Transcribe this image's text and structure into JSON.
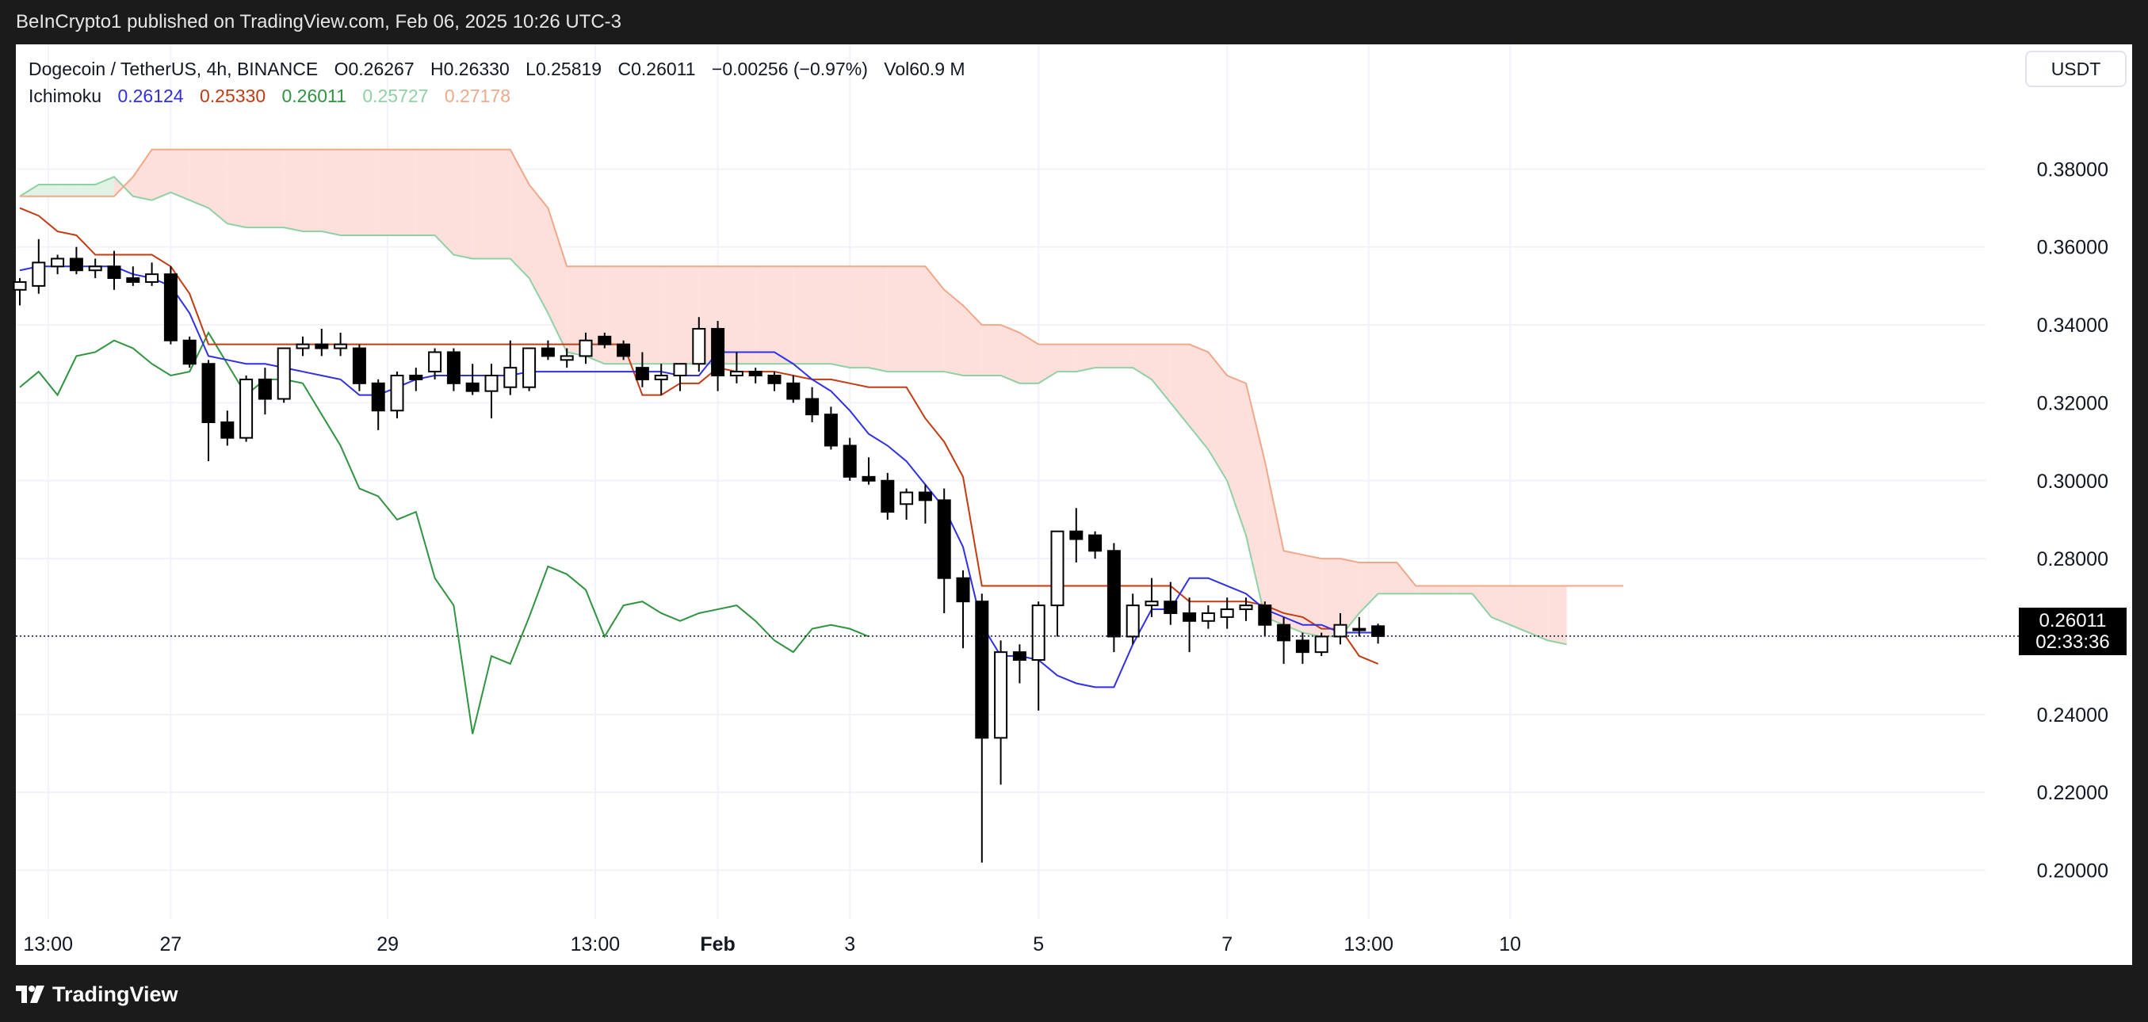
{
  "header": {
    "published_text": "BeInCrypto1 published on TradingView.com, Feb 06, 2025 10:26 UTC-3"
  },
  "legend": {
    "symbol": "Dogecoin / TetherUS, 4h, BINANCE",
    "open": "O0.26267",
    "high": "H0.26330",
    "low": "L0.25819",
    "close": "C0.26011",
    "change": "−0.00256 (−0.97%)",
    "volume": "Vol60.9 M",
    "indicator_name": "Ichimoku",
    "indicator_values": [
      "0.26124",
      "0.25330",
      "0.26011",
      "0.25727",
      "0.27178"
    ]
  },
  "currency_button": "USDT",
  "price_tag": {
    "price": "0.26011",
    "countdown": "02:33:36"
  },
  "footer": {
    "brand": "TradingView"
  },
  "colors": {
    "conversion": "#2f2fe8",
    "base": "#c23b12",
    "lagging": "#2e9440",
    "span_a": "#8fd1a3",
    "span_b": "#f0a889",
    "cloud_bear": "#fde0dc",
    "cloud_bull": "#dff2e3",
    "candle": "#000000"
  },
  "chart_data": {
    "type": "candlestick",
    "title": "Dogecoin / TetherUS, 4h, BINANCE",
    "symbol": "DOGEUSDT",
    "interval": "4h",
    "x_axis_labels": [
      "13:00",
      "27",
      "29",
      "13:00",
      "Feb",
      "3",
      "5",
      "7",
      "13:00",
      "10"
    ],
    "x_axis_label_bar_index": [
      1.5,
      8,
      19.5,
      30.5,
      37,
      44,
      54,
      64,
      71.5,
      79
    ],
    "y_ticks": [
      0.38,
      0.36,
      0.34,
      0.32,
      0.3,
      0.28,
      0.26,
      0.24,
      0.22,
      0.2
    ],
    "y_tick_labels": [
      "0.38000",
      "0.36000",
      "0.34000",
      "0.32000",
      "0.30000",
      "0.28000",
      "0.24000",
      "0.22000",
      "0.20000"
    ],
    "y_range": [
      0.1875,
      0.412
    ],
    "last_price": 0.26011,
    "candles": [
      {
        "o": 0.349,
        "h": 0.352,
        "l": 0.345,
        "c": 0.351
      },
      {
        "o": 0.35,
        "h": 0.362,
        "l": 0.348,
        "c": 0.356
      },
      {
        "o": 0.355,
        "h": 0.358,
        "l": 0.353,
        "c": 0.357
      },
      {
        "o": 0.357,
        "h": 0.36,
        "l": 0.353,
        "c": 0.354
      },
      {
        "o": 0.354,
        "h": 0.357,
        "l": 0.352,
        "c": 0.355
      },
      {
        "o": 0.355,
        "h": 0.359,
        "l": 0.349,
        "c": 0.352
      },
      {
        "o": 0.352,
        "h": 0.355,
        "l": 0.35,
        "c": 0.351
      },
      {
        "o": 0.351,
        "h": 0.356,
        "l": 0.35,
        "c": 0.353
      },
      {
        "o": 0.353,
        "h": 0.355,
        "l": 0.335,
        "c": 0.336
      },
      {
        "o": 0.336,
        "h": 0.337,
        "l": 0.329,
        "c": 0.33
      },
      {
        "o": 0.33,
        "h": 0.331,
        "l": 0.305,
        "c": 0.315
      },
      {
        "o": 0.315,
        "h": 0.318,
        "l": 0.309,
        "c": 0.311
      },
      {
        "o": 0.311,
        "h": 0.327,
        "l": 0.31,
        "c": 0.326
      },
      {
        "o": 0.326,
        "h": 0.329,
        "l": 0.317,
        "c": 0.321
      },
      {
        "o": 0.321,
        "h": 0.334,
        "l": 0.32,
        "c": 0.334
      },
      {
        "o": 0.334,
        "h": 0.337,
        "l": 0.332,
        "c": 0.335
      },
      {
        "o": 0.335,
        "h": 0.339,
        "l": 0.332,
        "c": 0.334
      },
      {
        "o": 0.334,
        "h": 0.338,
        "l": 0.332,
        "c": 0.335
      },
      {
        "o": 0.334,
        "h": 0.335,
        "l": 0.323,
        "c": 0.325
      },
      {
        "o": 0.325,
        "h": 0.326,
        "l": 0.313,
        "c": 0.318
      },
      {
        "o": 0.318,
        "h": 0.328,
        "l": 0.316,
        "c": 0.327
      },
      {
        "o": 0.327,
        "h": 0.329,
        "l": 0.323,
        "c": 0.326
      },
      {
        "o": 0.328,
        "h": 0.334,
        "l": 0.326,
        "c": 0.333
      },
      {
        "o": 0.333,
        "h": 0.334,
        "l": 0.323,
        "c": 0.325
      },
      {
        "o": 0.325,
        "h": 0.33,
        "l": 0.322,
        "c": 0.323
      },
      {
        "o": 0.323,
        "h": 0.33,
        "l": 0.316,
        "c": 0.327
      },
      {
        "o": 0.324,
        "h": 0.336,
        "l": 0.322,
        "c": 0.329
      },
      {
        "o": 0.324,
        "h": 0.334,
        "l": 0.323,
        "c": 0.334
      },
      {
        "o": 0.334,
        "h": 0.336,
        "l": 0.331,
        "c": 0.332
      },
      {
        "o": 0.331,
        "h": 0.334,
        "l": 0.329,
        "c": 0.332
      },
      {
        "o": 0.332,
        "h": 0.338,
        "l": 0.33,
        "c": 0.336
      },
      {
        "o": 0.337,
        "h": 0.338,
        "l": 0.334,
        "c": 0.335
      },
      {
        "o": 0.335,
        "h": 0.336,
        "l": 0.331,
        "c": 0.332
      },
      {
        "o": 0.329,
        "h": 0.333,
        "l": 0.324,
        "c": 0.326
      },
      {
        "o": 0.326,
        "h": 0.33,
        "l": 0.322,
        "c": 0.327
      },
      {
        "o": 0.327,
        "h": 0.33,
        "l": 0.323,
        "c": 0.33
      },
      {
        "o": 0.33,
        "h": 0.342,
        "l": 0.328,
        "c": 0.339
      },
      {
        "o": 0.339,
        "h": 0.341,
        "l": 0.323,
        "c": 0.327
      },
      {
        "o": 0.327,
        "h": 0.333,
        "l": 0.325,
        "c": 0.328
      },
      {
        "o": 0.328,
        "h": 0.329,
        "l": 0.325,
        "c": 0.327
      },
      {
        "o": 0.327,
        "h": 0.328,
        "l": 0.323,
        "c": 0.325
      },
      {
        "o": 0.325,
        "h": 0.327,
        "l": 0.32,
        "c": 0.321
      },
      {
        "o": 0.321,
        "h": 0.324,
        "l": 0.315,
        "c": 0.317
      },
      {
        "o": 0.317,
        "h": 0.319,
        "l": 0.308,
        "c": 0.309
      },
      {
        "o": 0.309,
        "h": 0.311,
        "l": 0.3,
        "c": 0.301
      },
      {
        "o": 0.301,
        "h": 0.306,
        "l": 0.299,
        "c": 0.3
      },
      {
        "o": 0.3,
        "h": 0.302,
        "l": 0.29,
        "c": 0.292
      },
      {
        "o": 0.294,
        "h": 0.298,
        "l": 0.29,
        "c": 0.297
      },
      {
        "o": 0.297,
        "h": 0.299,
        "l": 0.289,
        "c": 0.295
      },
      {
        "o": 0.295,
        "h": 0.298,
        "l": 0.266,
        "c": 0.275
      },
      {
        "o": 0.275,
        "h": 0.277,
        "l": 0.257,
        "c": 0.269
      },
      {
        "o": 0.269,
        "h": 0.271,
        "l": 0.202,
        "c": 0.234
      },
      {
        "o": 0.234,
        "h": 0.259,
        "l": 0.222,
        "c": 0.256
      },
      {
        "o": 0.256,
        "h": 0.258,
        "l": 0.248,
        "c": 0.254
      },
      {
        "o": 0.254,
        "h": 0.269,
        "l": 0.241,
        "c": 0.268
      },
      {
        "o": 0.268,
        "h": 0.287,
        "l": 0.26,
        "c": 0.287
      },
      {
        "o": 0.287,
        "h": 0.293,
        "l": 0.279,
        "c": 0.285
      },
      {
        "o": 0.286,
        "h": 0.287,
        "l": 0.28,
        "c": 0.282
      },
      {
        "o": 0.282,
        "h": 0.284,
        "l": 0.256,
        "c": 0.26
      },
      {
        "o": 0.26,
        "h": 0.271,
        "l": 0.258,
        "c": 0.268
      },
      {
        "o": 0.268,
        "h": 0.275,
        "l": 0.265,
        "c": 0.269
      },
      {
        "o": 0.269,
        "h": 0.274,
        "l": 0.263,
        "c": 0.266
      },
      {
        "o": 0.266,
        "h": 0.27,
        "l": 0.256,
        "c": 0.264
      },
      {
        "o": 0.264,
        "h": 0.268,
        "l": 0.262,
        "c": 0.266
      },
      {
        "o": 0.265,
        "h": 0.27,
        "l": 0.262,
        "c": 0.267
      },
      {
        "o": 0.267,
        "h": 0.27,
        "l": 0.264,
        "c": 0.268
      },
      {
        "o": 0.268,
        "h": 0.269,
        "l": 0.26,
        "c": 0.263
      },
      {
        "o": 0.263,
        "h": 0.265,
        "l": 0.253,
        "c": 0.259
      },
      {
        "o": 0.259,
        "h": 0.261,
        "l": 0.253,
        "c": 0.256
      },
      {
        "o": 0.256,
        "h": 0.261,
        "l": 0.255,
        "c": 0.26
      },
      {
        "o": 0.26,
        "h": 0.266,
        "l": 0.258,
        "c": 0.263
      },
      {
        "o": 0.262,
        "h": 0.265,
        "l": 0.26,
        "c": 0.262
      },
      {
        "o": 0.26267,
        "h": 0.2633,
        "l": 0.25819,
        "c": 0.26011
      }
    ],
    "series": [
      {
        "name": "Conversion Line",
        "start_index": 0,
        "values": [
          0.354,
          0.355,
          0.355,
          0.355,
          0.355,
          0.355,
          0.353,
          0.352,
          0.35,
          0.343,
          0.332,
          0.331,
          0.33,
          0.33,
          0.329,
          0.328,
          0.327,
          0.326,
          0.322,
          0.322,
          0.324,
          0.326,
          0.327,
          0.327,
          0.327,
          0.327,
          0.327,
          0.328,
          0.328,
          0.328,
          0.328,
          0.328,
          0.328,
          0.328,
          0.328,
          0.327,
          0.327,
          0.333,
          0.333,
          0.333,
          0.333,
          0.33,
          0.326,
          0.323,
          0.318,
          0.312,
          0.309,
          0.305,
          0.299,
          0.293,
          0.283,
          0.263,
          0.255,
          0.255,
          0.254,
          0.25,
          0.248,
          0.247,
          0.247,
          0.258,
          0.267,
          0.267,
          0.275,
          0.275,
          0.273,
          0.271,
          0.267,
          0.265,
          0.263,
          0.263,
          0.261,
          0.261,
          0.261
        ]
      },
      {
        "name": "Base Line",
        "start_index": 0,
        "values": [
          0.37,
          0.368,
          0.364,
          0.363,
          0.358,
          0.358,
          0.358,
          0.358,
          0.355,
          0.348,
          0.335,
          0.335,
          0.335,
          0.335,
          0.335,
          0.335,
          0.335,
          0.335,
          0.335,
          0.335,
          0.335,
          0.335,
          0.335,
          0.335,
          0.335,
          0.335,
          0.335,
          0.335,
          0.335,
          0.335,
          0.335,
          0.335,
          0.335,
          0.322,
          0.322,
          0.325,
          0.325,
          0.329,
          0.328,
          0.328,
          0.328,
          0.327,
          0.326,
          0.326,
          0.325,
          0.324,
          0.324,
          0.324,
          0.316,
          0.31,
          0.301,
          0.273,
          0.273,
          0.273,
          0.273,
          0.273,
          0.273,
          0.273,
          0.273,
          0.273,
          0.273,
          0.273,
          0.269,
          0.269,
          0.269,
          0.269,
          0.268,
          0.266,
          0.265,
          0.262,
          0.262,
          0.255,
          0.253
        ]
      },
      {
        "name": "Lagging Span",
        "start_index": 0,
        "values": [
          0.324,
          0.328,
          0.322,
          0.332,
          0.333,
          0.336,
          0.334,
          0.33,
          0.327,
          0.328,
          0.338,
          0.33,
          0.322,
          0.326,
          0.326,
          0.325,
          0.317,
          0.309,
          0.298,
          0.296,
          0.29,
          0.292,
          0.275,
          0.268,
          0.235,
          0.255,
          0.253,
          0.265,
          0.278,
          0.276,
          0.272,
          0.26,
          0.268,
          0.269,
          0.266,
          0.264,
          0.266,
          0.267,
          0.268,
          0.264,
          0.259,
          0.256,
          0.262,
          0.263,
          0.262,
          0.26
        ]
      },
      {
        "name": "Leading Span A",
        "start_index": 0,
        "values": [
          0.373,
          0.376,
          0.376,
          0.376,
          0.376,
          0.378,
          0.373,
          0.372,
          0.374,
          0.372,
          0.37,
          0.366,
          0.365,
          0.365,
          0.365,
          0.364,
          0.364,
          0.363,
          0.363,
          0.363,
          0.363,
          0.363,
          0.363,
          0.358,
          0.357,
          0.357,
          0.357,
          0.352,
          0.343,
          0.333,
          0.332,
          0.33,
          0.33,
          0.33,
          0.33,
          0.33,
          0.33,
          0.33,
          0.33,
          0.33,
          0.33,
          0.33,
          0.33,
          0.33,
          0.329,
          0.329,
          0.328,
          0.328,
          0.328,
          0.328,
          0.327,
          0.327,
          0.327,
          0.325,
          0.325,
          0.328,
          0.328,
          0.329,
          0.329,
          0.329,
          0.326,
          0.32,
          0.314,
          0.308,
          0.3,
          0.286,
          0.265,
          0.263,
          0.261,
          0.26,
          0.26,
          0.266,
          0.271,
          0.271,
          0.271,
          0.271,
          0.271,
          0.271,
          0.265,
          0.263,
          0.261,
          0.259,
          0.258
        ]
      },
      {
        "name": "Leading Span B",
        "start_index": 0,
        "values": [
          0.373,
          0.373,
          0.373,
          0.373,
          0.373,
          0.373,
          0.378,
          0.385,
          0.385,
          0.385,
          0.385,
          0.385,
          0.385,
          0.385,
          0.385,
          0.385,
          0.385,
          0.385,
          0.385,
          0.385,
          0.385,
          0.385,
          0.385,
          0.385,
          0.385,
          0.385,
          0.385,
          0.376,
          0.37,
          0.355,
          0.355,
          0.355,
          0.355,
          0.355,
          0.355,
          0.355,
          0.355,
          0.355,
          0.355,
          0.355,
          0.355,
          0.355,
          0.355,
          0.355,
          0.355,
          0.355,
          0.355,
          0.355,
          0.355,
          0.349,
          0.345,
          0.34,
          0.34,
          0.338,
          0.335,
          0.335,
          0.335,
          0.335,
          0.335,
          0.335,
          0.335,
          0.335,
          0.335,
          0.333,
          0.327,
          0.325,
          0.305,
          0.282,
          0.281,
          0.28,
          0.28,
          0.279,
          0.279,
          0.279,
          0.273,
          0.273,
          0.273,
          0.273,
          0.273,
          0.273,
          0.273,
          0.273,
          0.273,
          0.273,
          0.273,
          0.273
        ]
      }
    ]
  }
}
